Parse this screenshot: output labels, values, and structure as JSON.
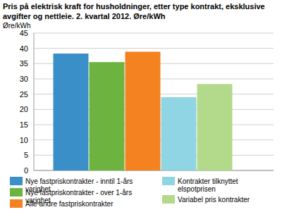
{
  "chart_data": {
    "type": "bar",
    "title": "Pris på elektrisk kraft for husholdninger, etter type kontrakt, eksklusive avgifter og nettleie. 2. kvartal 2012. Øre/kWh",
    "y_label": "Øre/kWh",
    "categories": [
      null
    ],
    "series": [
      {
        "name": "Nye fastpriskontrakter - inntil 1-års varighet",
        "color": "#3a8fc9",
        "values": [
          38.3
        ]
      },
      {
        "name": "Nye fastpriskontrakter - over 1-års varighet",
        "color": "#6db33f",
        "values": [
          35.5
        ]
      },
      {
        "name": "Alle andre fastpriskontrakter",
        "color": "#f58220",
        "values": [
          38.9
        ]
      },
      {
        "name": "Kontrakter tilknyttet elspotprisen",
        "color": "#8fd5e3",
        "values": [
          24.0
        ]
      },
      {
        "name": "Variabel pris kontrakter",
        "color": "#b3d98a",
        "values": [
          28.3
        ]
      }
    ],
    "ylim": [
      0,
      45
    ],
    "yticks": [
      0,
      5,
      10,
      15,
      20,
      25,
      30,
      35,
      40,
      45
    ],
    "grid": true,
    "legend": "bottom"
  }
}
